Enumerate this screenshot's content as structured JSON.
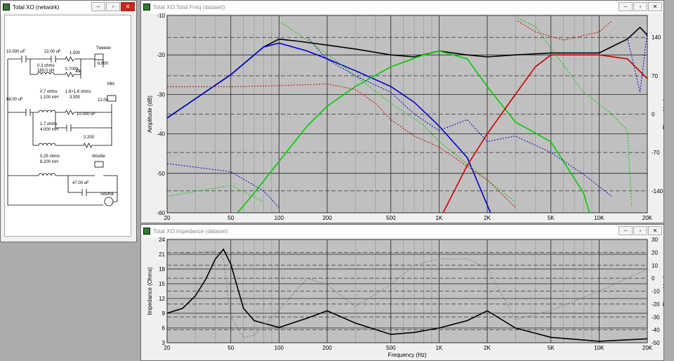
{
  "windows": {
    "network": {
      "title": "Total XO (network)"
    },
    "freq": {
      "title": "Total XO.Total Freq (dataset)"
    },
    "imp": {
      "title": "Total XO.Impedance (dataset)"
    }
  },
  "window_controls": {
    "minimize": "–",
    "restore": "▫",
    "close": "✕"
  },
  "network": {
    "components": [
      "10.000 uF",
      "22.00 uF",
      "1.500",
      "Tweeter",
      "0.3 ohms",
      "160.0 uH",
      "0.7000",
      "6.800",
      "0.7 ohms",
      "1.100 mH",
      "1.8+1.6 ohms",
      "3.300",
      "Mid",
      "68.00 uF",
      "12.00",
      "10.000 uF",
      "1.7 ohms",
      "4.000 mH",
      "2.200",
      "0.25 ohms",
      "8.200 mH",
      "Woofer",
      "47.00 uF",
      "Source"
    ]
  },
  "chart_data": [
    {
      "type": "line",
      "title": "Total XO.Total Freq (dataset)",
      "xlabel": "",
      "ylabel": "Amplitude (dB)",
      "y2label": "Phase (deg)",
      "xscale": "log",
      "xlim": [
        20,
        20000
      ],
      "ylim": [
        -60,
        -10
      ],
      "y2lim": [
        -180,
        180
      ],
      "x_ticks": [
        20,
        50,
        100,
        200,
        500,
        1000,
        2000,
        5000,
        10000,
        20000
      ],
      "x_tick_labels": [
        "20",
        "50",
        "100",
        "200",
        "500",
        "1K",
        "2K",
        "5K",
        "10K",
        "20K"
      ],
      "y_ticks": [
        -10,
        -20,
        -30,
        -40,
        -50,
        -60
      ],
      "y2_ticks": [
        140,
        70,
        0,
        -70,
        -140
      ],
      "grid": true,
      "series": [
        {
          "color": "#000000",
          "style": "solid",
          "axis": "left",
          "points": [
            [
              20,
              -36
            ],
            [
              50,
              -25
            ],
            [
              80,
              -18
            ],
            [
              100,
              -16
            ],
            [
              130,
              -16.5
            ],
            [
              200,
              -17.5
            ],
            [
              300,
              -18.5
            ],
            [
              500,
              -20
            ],
            [
              700,
              -20.5
            ],
            [
              1000,
              -19
            ],
            [
              1500,
              -20
            ],
            [
              2000,
              -20.5
            ],
            [
              3000,
              -20
            ],
            [
              5000,
              -19.5
            ],
            [
              10000,
              -19.5
            ],
            [
              15000,
              -16
            ],
            [
              18000,
              -13
            ],
            [
              20000,
              -15
            ]
          ]
        },
        {
          "color": "#0000cc",
          "style": "solid",
          "axis": "left",
          "points": [
            [
              20,
              -36
            ],
            [
              50,
              -25
            ],
            [
              80,
              -18
            ],
            [
              100,
              -17
            ],
            [
              150,
              -19
            ],
            [
              200,
              -21
            ],
            [
              300,
              -24
            ],
            [
              500,
              -28
            ],
            [
              700,
              -32
            ],
            [
              1000,
              -38
            ],
            [
              1500,
              -46
            ],
            [
              2000,
              -58
            ],
            [
              2200,
              -62
            ]
          ]
        },
        {
          "color": "#00cc00",
          "style": "solid",
          "axis": "left",
          "points": [
            [
              50,
              -62
            ],
            [
              70,
              -55
            ],
            [
              100,
              -47
            ],
            [
              150,
              -38
            ],
            [
              200,
              -33
            ],
            [
              300,
              -28
            ],
            [
              500,
              -23
            ],
            [
              800,
              -20
            ],
            [
              1000,
              -19
            ],
            [
              1500,
              -21
            ],
            [
              2000,
              -28
            ],
            [
              3000,
              -37
            ],
            [
              5000,
              -42
            ],
            [
              8000,
              -55
            ],
            [
              9000,
              -62
            ]
          ]
        },
        {
          "color": "#cc0000",
          "style": "solid",
          "axis": "left",
          "points": [
            [
              1000,
              -62
            ],
            [
              1500,
              -48
            ],
            [
              2000,
              -40
            ],
            [
              3000,
              -30
            ],
            [
              4000,
              -23
            ],
            [
              5000,
              -20
            ],
            [
              8000,
              -20
            ],
            [
              10000,
              -20
            ],
            [
              15000,
              -21
            ],
            [
              20000,
              -26
            ]
          ]
        },
        {
          "color": "#0000cc",
          "style": "dotted",
          "axis": "right",
          "points": [
            [
              20,
              -90
            ],
            [
              50,
              -105
            ],
            [
              80,
              -140
            ],
            [
              100,
              -170
            ],
            [
              150,
              140
            ],
            [
              200,
              100
            ],
            [
              300,
              70
            ],
            [
              500,
              40
            ],
            [
              700,
              0
            ],
            [
              1000,
              -30
            ],
            [
              1500,
              -10
            ],
            [
              2000,
              -50
            ],
            [
              3000,
              -40
            ],
            [
              5000,
              -70
            ],
            [
              8000,
              -110
            ],
            [
              12000,
              -150
            ],
            [
              15000,
              140
            ],
            [
              18000,
              40
            ],
            [
              20000,
              150
            ]
          ]
        },
        {
          "color": "#00cc00",
          "style": "dotted",
          "axis": "right",
          "points": [
            [
              20,
              -150
            ],
            [
              50,
              -130
            ],
            [
              80,
              -160
            ],
            [
              100,
              170
            ],
            [
              200,
              110
            ],
            [
              300,
              70
            ],
            [
              500,
              20
            ],
            [
              800,
              -20
            ],
            [
              1000,
              -50
            ],
            [
              2000,
              -120
            ],
            [
              3000,
              -160
            ],
            [
              3100,
              175
            ],
            [
              4000,
              160
            ],
            [
              5000,
              120
            ],
            [
              8000,
              40
            ],
            [
              12000,
              0
            ],
            [
              15000,
              -30
            ],
            [
              16000,
              -170
            ]
          ]
        },
        {
          "color": "#cc0000",
          "style": "dotted",
          "axis": "right",
          "points": [
            [
              20,
              50
            ],
            [
              50,
              50
            ],
            [
              100,
              52
            ],
            [
              200,
              55
            ],
            [
              300,
              45
            ],
            [
              400,
              20
            ],
            [
              500,
              -10
            ],
            [
              700,
              -40
            ],
            [
              1000,
              -60
            ],
            [
              2000,
              -120
            ],
            [
              3000,
              -170
            ],
            [
              3100,
              170
            ],
            [
              4000,
              150
            ],
            [
              6000,
              135
            ],
            [
              10000,
              150
            ],
            [
              12000,
              170
            ],
            [
              20000,
              -140
            ]
          ]
        }
      ]
    },
    {
      "type": "line",
      "title": "Total XO.Impedance (dataset)",
      "xlabel": "Frequency (Hz)",
      "ylabel": "Impedance (Ohms)",
      "y2label": "Phase (deg)",
      "xscale": "log",
      "xlim": [
        20,
        20000
      ],
      "ylim": [
        3,
        24
      ],
      "y2lim": [
        -50,
        30
      ],
      "x_ticks": [
        20,
        50,
        100,
        200,
        500,
        1000,
        2000,
        5000,
        10000,
        20000
      ],
      "x_tick_labels": [
        "20",
        "50",
        "100",
        "200",
        "500",
        "1K",
        "2K",
        "5K",
        "10K",
        "20K"
      ],
      "y_ticks": [
        3,
        6,
        9,
        12,
        15,
        18,
        21,
        24
      ],
      "y2_ticks": [
        30,
        20,
        10,
        0,
        -10,
        -20,
        -30,
        -40,
        -50
      ],
      "grid": true,
      "series": [
        {
          "color": "#000000",
          "style": "solid",
          "axis": "left",
          "points": [
            [
              20,
              9
            ],
            [
              25,
              10
            ],
            [
              30,
              12.5
            ],
            [
              35,
              16
            ],
            [
              40,
              20
            ],
            [
              45,
              22
            ],
            [
              50,
              19
            ],
            [
              60,
              10
            ],
            [
              70,
              7.5
            ],
            [
              100,
              6.1
            ],
            [
              150,
              8
            ],
            [
              200,
              9.5
            ],
            [
              300,
              7
            ],
            [
              500,
              4.7
            ],
            [
              700,
              5.1
            ],
            [
              1000,
              6
            ],
            [
              1500,
              7.5
            ],
            [
              2000,
              9.5
            ],
            [
              3000,
              6
            ],
            [
              5000,
              4.1
            ],
            [
              10000,
              3.3
            ],
            [
              20000,
              3.8
            ]
          ]
        },
        {
          "color": "#808080",
          "style": "dotted",
          "axis": "right",
          "points": [
            [
              20,
              18
            ],
            [
              30,
              20
            ],
            [
              40,
              21
            ],
            [
              45,
              15
            ],
            [
              50,
              -30
            ],
            [
              60,
              -46
            ],
            [
              70,
              -44
            ],
            [
              100,
              -25
            ],
            [
              150,
              0
            ],
            [
              200,
              -5
            ],
            [
              300,
              -22
            ],
            [
              500,
              -5
            ],
            [
              700,
              10
            ],
            [
              1000,
              15
            ],
            [
              1500,
              15
            ],
            [
              2000,
              8
            ],
            [
              3000,
              -32
            ],
            [
              5000,
              -25
            ],
            [
              10000,
              -10
            ],
            [
              20000,
              7
            ]
          ]
        }
      ]
    }
  ]
}
